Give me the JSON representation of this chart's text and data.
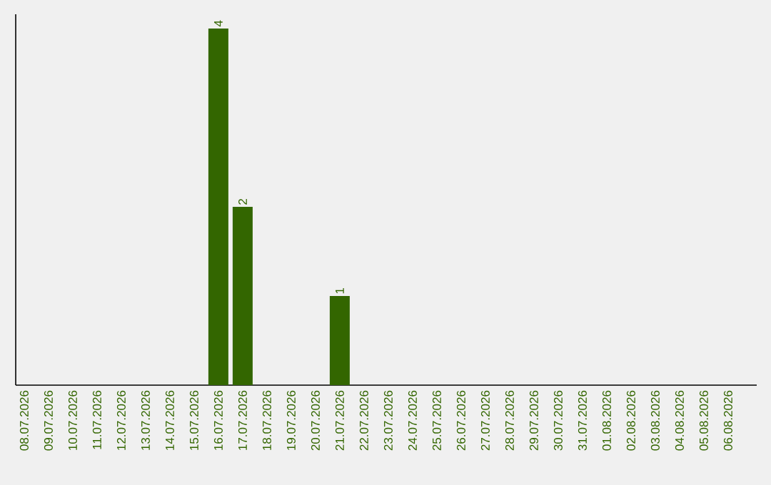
{
  "chart_data": {
    "type": "bar",
    "categories": [
      "08.07.2026",
      "09.07.2026",
      "10.07.2026",
      "11.07.2026",
      "12.07.2026",
      "13.07.2026",
      "14.07.2026",
      "15.07.2026",
      "16.07.2026",
      "17.07.2026",
      "18.07.2026",
      "19.07.2026",
      "20.07.2026",
      "21.07.2026",
      "22.07.2026",
      "23.07.2026",
      "24.07.2026",
      "25.07.2026",
      "26.07.2026",
      "27.07.2026",
      "28.07.2026",
      "29.07.2026",
      "30.07.2026",
      "31.07.2026",
      "01.08.2026",
      "02.08.2026",
      "03.08.2026",
      "04.08.2026",
      "05.08.2026",
      "06.08.2026"
    ],
    "values": [
      0,
      0,
      0,
      0,
      0,
      0,
      0,
      0,
      4,
      2,
      0,
      0,
      0,
      1,
      0,
      0,
      0,
      0,
      0,
      0,
      0,
      0,
      0,
      0,
      0,
      0,
      0,
      0,
      0,
      0
    ],
    "value_labels": [
      null,
      null,
      null,
      null,
      null,
      null,
      null,
      null,
      "4",
      "2",
      null,
      null,
      null,
      "1",
      null,
      null,
      null,
      null,
      null,
      null,
      null,
      null,
      null,
      null,
      null,
      null,
      null,
      null,
      null,
      null
    ],
    "color": "#336600"
  }
}
